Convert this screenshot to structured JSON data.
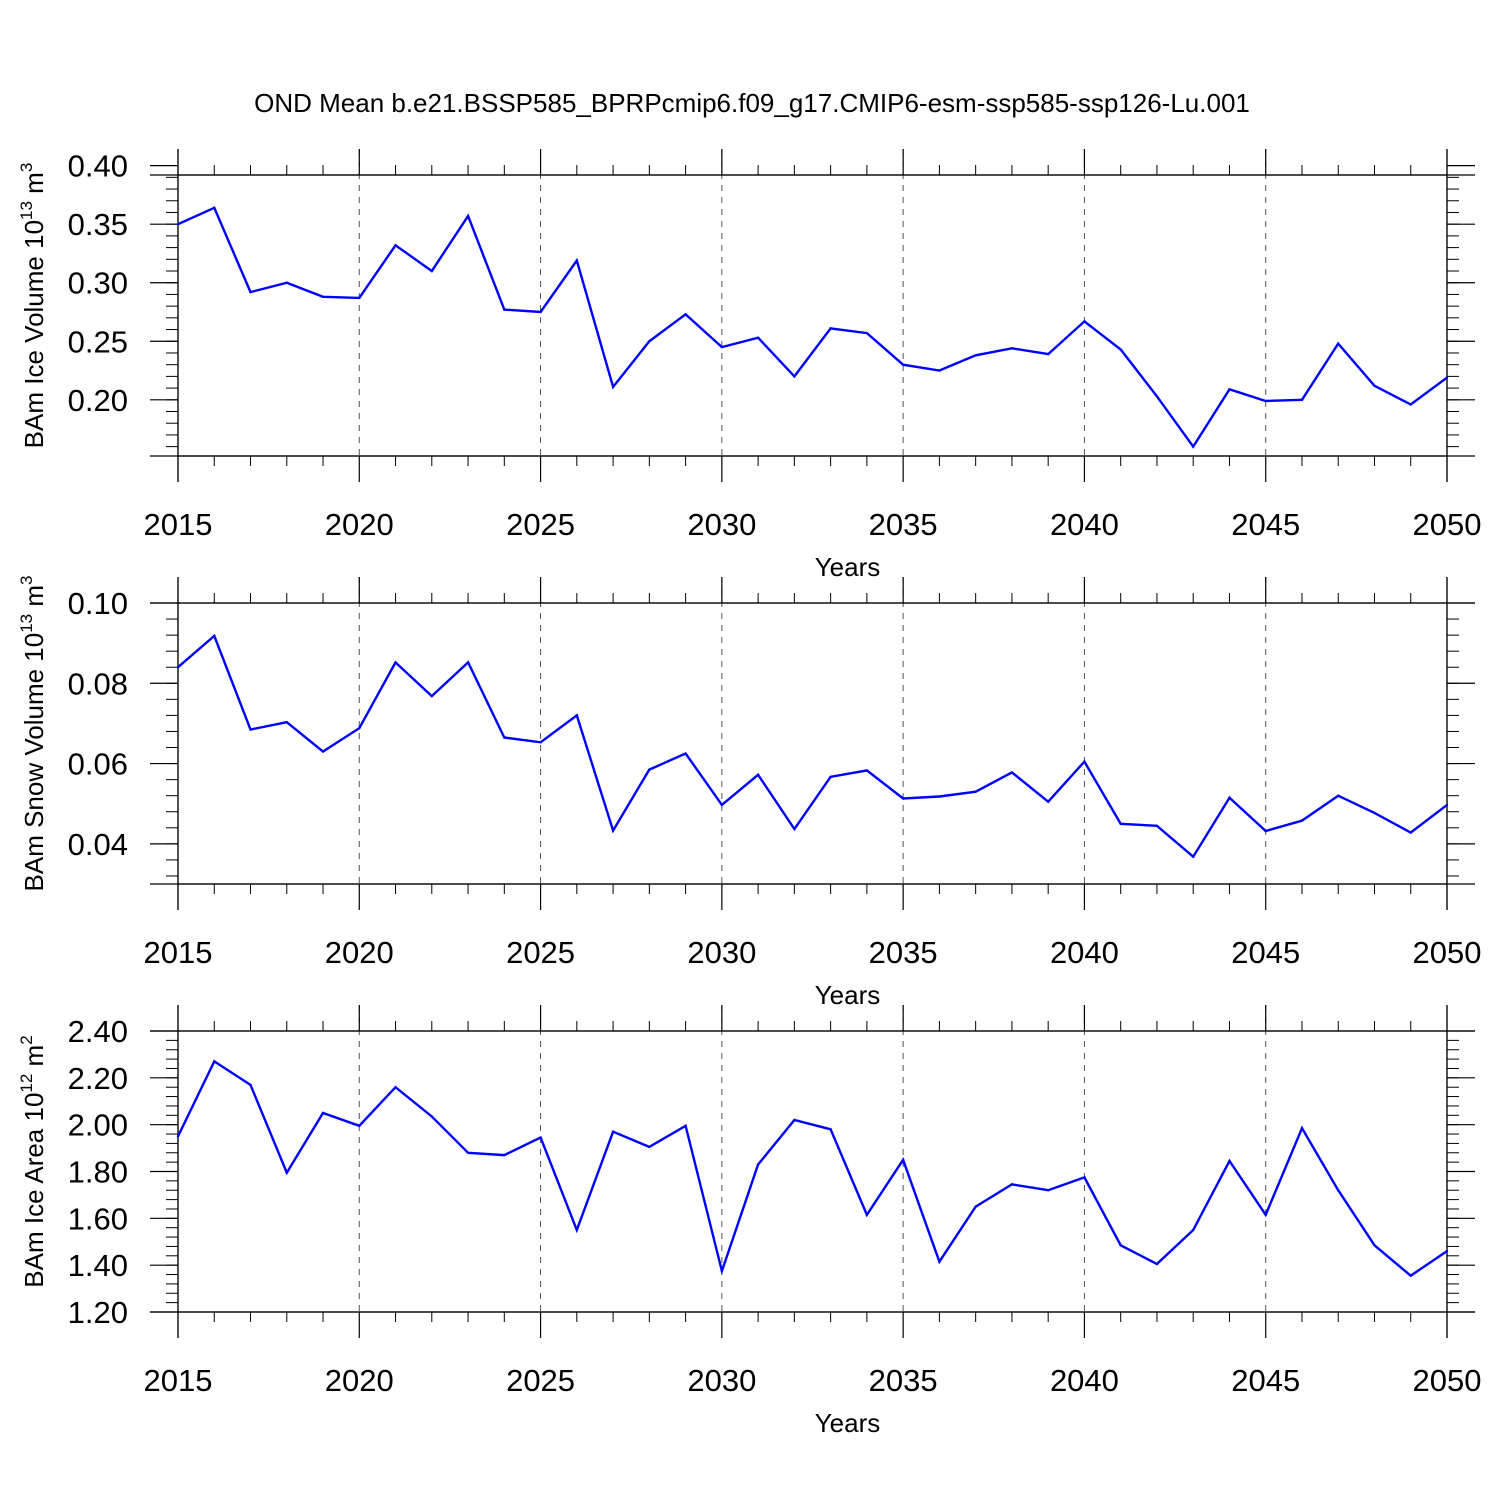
{
  "title": "OND Mean b.e21.BSSP585_BPRPcmip6.f09_g17.CMIP6-esm-ssp585-ssp126-Lu.001",
  "colors": {
    "series": "#0000ff",
    "axes": "#000000",
    "grid": "#555555"
  },
  "chart_data": [
    {
      "type": "line",
      "ylabel_main": "BAm Ice Volume 10",
      "ylabel_exp": "13",
      "ylabel_unit": " m",
      "ylabel_unit_exp": "3",
      "xlabel": "Years",
      "xlim": [
        2015,
        2050
      ],
      "ylim": [
        0.152,
        0.392
      ],
      "xticks": [
        2015,
        2020,
        2025,
        2030,
        2035,
        2040,
        2045,
        2050
      ],
      "yticks": [
        0.2,
        0.25,
        0.3,
        0.35,
        0.4
      ],
      "ytick_labels": [
        "0.20",
        "0.25",
        "0.30",
        "0.35",
        "0.40"
      ],
      "x": [
        2015,
        2016,
        2017,
        2018,
        2019,
        2020,
        2021,
        2022,
        2023,
        2024,
        2025,
        2026,
        2027,
        2028,
        2029,
        2030,
        2031,
        2032,
        2033,
        2034,
        2035,
        2036,
        2037,
        2038,
        2039,
        2040,
        2041,
        2042,
        2043,
        2044,
        2045,
        2046,
        2047,
        2048,
        2049,
        2050
      ],
      "y": [
        0.35,
        0.364,
        0.292,
        0.3,
        0.288,
        0.287,
        0.332,
        0.31,
        0.357,
        0.277,
        0.275,
        0.319,
        0.211,
        0.25,
        0.273,
        0.245,
        0.253,
        0.22,
        0.261,
        0.257,
        0.23,
        0.225,
        0.238,
        0.244,
        0.239,
        0.267,
        0.243,
        0.203,
        0.16,
        0.209,
        0.199,
        0.2,
        0.248,
        0.212,
        0.196,
        0.219
      ]
    },
    {
      "type": "line",
      "ylabel_main": "BAm Snow Volume 10",
      "ylabel_exp": "13",
      "ylabel_unit": " m",
      "ylabel_unit_exp": "3",
      "xlabel": "Years",
      "xlim": [
        2015,
        2050
      ],
      "ylim": [
        0.03,
        0.1
      ],
      "xticks": [
        2015,
        2020,
        2025,
        2030,
        2035,
        2040,
        2045,
        2050
      ],
      "yticks": [
        0.04,
        0.06,
        0.08,
        0.1
      ],
      "ytick_labels": [
        "0.04",
        "0.06",
        "0.08",
        "0.10"
      ],
      "x": [
        2015,
        2016,
        2017,
        2018,
        2019,
        2020,
        2021,
        2022,
        2023,
        2024,
        2025,
        2026,
        2027,
        2028,
        2029,
        2030,
        2031,
        2032,
        2033,
        2034,
        2035,
        2036,
        2037,
        2038,
        2039,
        2040,
        2041,
        2042,
        2043,
        2044,
        2045,
        2046,
        2047,
        2048,
        2049,
        2050
      ],
      "y": [
        0.084,
        0.0918,
        0.0685,
        0.0703,
        0.063,
        0.0688,
        0.0852,
        0.0768,
        0.0852,
        0.0665,
        0.0653,
        0.072,
        0.0433,
        0.0585,
        0.0625,
        0.0497,
        0.0572,
        0.0437,
        0.0567,
        0.0583,
        0.0513,
        0.0518,
        0.053,
        0.0578,
        0.0505,
        0.0605,
        0.045,
        0.0445,
        0.0368,
        0.0515,
        0.0432,
        0.0458,
        0.052,
        0.0477,
        0.0428,
        0.0497
      ]
    },
    {
      "type": "line",
      "ylabel_main": "BAm Ice Area 10",
      "ylabel_exp": "12",
      "ylabel_unit": " m",
      "ylabel_unit_exp": "2",
      "xlabel": "Years",
      "xlim": [
        2015,
        2050
      ],
      "ylim": [
        1.2,
        2.4
      ],
      "xticks": [
        2015,
        2020,
        2025,
        2030,
        2035,
        2040,
        2045,
        2050
      ],
      "yticks": [
        1.2,
        1.4,
        1.6,
        1.8,
        2.0,
        2.2,
        2.4
      ],
      "ytick_labels": [
        "1.20",
        "1.40",
        "1.60",
        "1.80",
        "2.00",
        "2.20",
        "2.40"
      ],
      "x": [
        2015,
        2016,
        2017,
        2018,
        2019,
        2020,
        2021,
        2022,
        2023,
        2024,
        2025,
        2026,
        2027,
        2028,
        2029,
        2030,
        2031,
        2032,
        2033,
        2034,
        2035,
        2036,
        2037,
        2038,
        2039,
        2040,
        2041,
        2042,
        2043,
        2044,
        2045,
        2046,
        2047,
        2048,
        2049,
        2050
      ],
      "y": [
        1.95,
        2.27,
        2.17,
        1.795,
        2.05,
        1.995,
        2.16,
        2.035,
        1.88,
        1.87,
        1.945,
        1.55,
        1.97,
        1.905,
        1.995,
        1.375,
        1.83,
        2.02,
        1.98,
        1.615,
        1.85,
        1.415,
        1.65,
        1.745,
        1.72,
        1.775,
        1.485,
        1.405,
        1.55,
        1.845,
        1.615,
        1.985,
        1.72,
        1.485,
        1.355,
        1.46
      ]
    }
  ]
}
